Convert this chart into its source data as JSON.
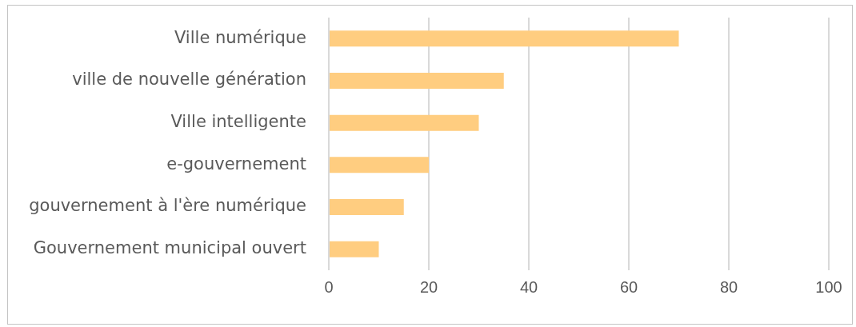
{
  "chart_data": {
    "type": "bar",
    "orientation": "horizontal",
    "categories": [
      "Ville numérique",
      "ville de nouvelle génération",
      "Ville intelligente",
      "e-gouvernement",
      "gouvernement à l'ère numérique",
      "Gouvernement municipal ouvert"
    ],
    "values": [
      70,
      35,
      30,
      20,
      15,
      10
    ],
    "color": "#ffcd80",
    "xlim": [
      0,
      100
    ],
    "xticks": [
      0,
      20,
      40,
      60,
      80,
      100
    ],
    "grid": "x"
  }
}
